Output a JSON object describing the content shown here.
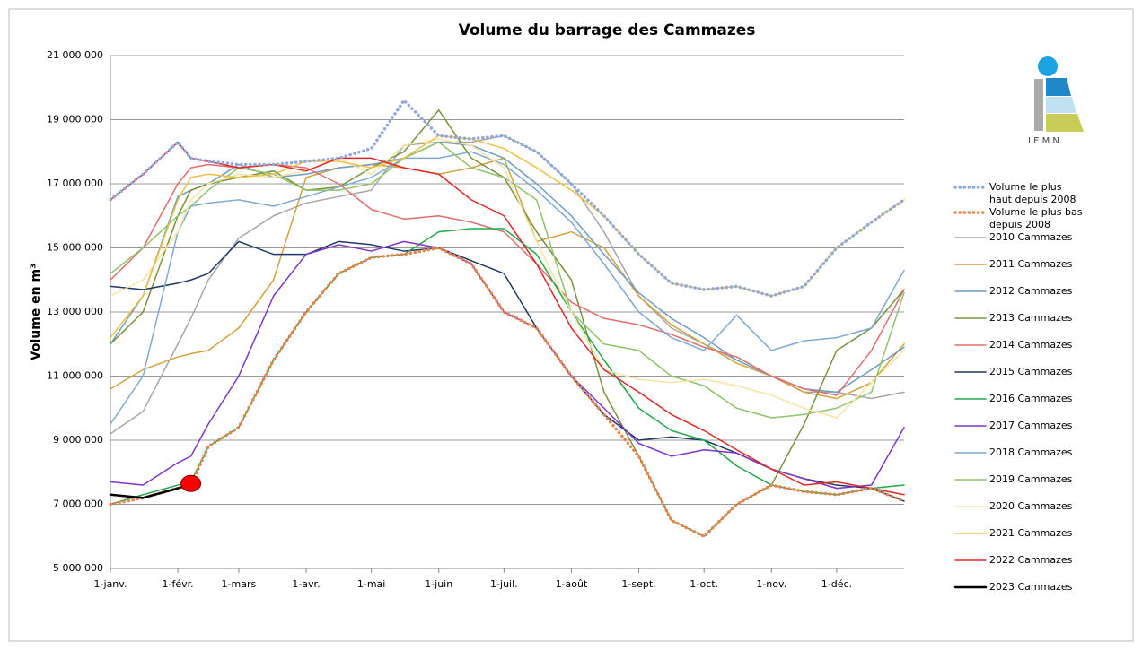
{
  "chart_data": {
    "type": "line",
    "title": "Volume du barrage des Cammazes",
    "y_label": "Volume en m³",
    "logo_text": "I.E.M.N.",
    "grid": true,
    "legend": "right",
    "xlim": [
      0,
      365
    ],
    "xticks": [
      {
        "value": 0,
        "label": "1-janv."
      },
      {
        "value": 31,
        "label": "1-févr."
      },
      {
        "value": 59,
        "label": "1-mars"
      },
      {
        "value": 90,
        "label": "1-avr."
      },
      {
        "value": 120,
        "label": "1-mai"
      },
      {
        "value": 151,
        "label": "1-juin"
      },
      {
        "value": 181,
        "label": "1-juil."
      },
      {
        "value": 212,
        "label": "1-août"
      },
      {
        "value": 243,
        "label": "1-sept."
      },
      {
        "value": 273,
        "label": "1-oct."
      },
      {
        "value": 304,
        "label": "1-nov."
      },
      {
        "value": 334,
        "label": "1-déc."
      }
    ],
    "ylim": [
      5000000,
      21000000
    ],
    "yticks": [
      {
        "value": 5000000,
        "label": "5 000 000"
      },
      {
        "value": 7000000,
        "label": "7 000 000"
      },
      {
        "value": 9000000,
        "label": "9 000 000"
      },
      {
        "value": 11000000,
        "label": "11 000 000"
      },
      {
        "value": 13000000,
        "label": "13 000 000"
      },
      {
        "value": 15000000,
        "label": "15 000 000"
      },
      {
        "value": 17000000,
        "label": "17 000 000"
      },
      {
        "value": 19000000,
        "label": "19 000 000"
      },
      {
        "value": 21000000,
        "label": "21 000 000"
      }
    ],
    "x": [
      0,
      15,
      31,
      37,
      45,
      59,
      75,
      90,
      105,
      120,
      135,
      151,
      166,
      181,
      196,
      212,
      227,
      243,
      258,
      273,
      288,
      304,
      319,
      334,
      350,
      365
    ],
    "series": [
      {
        "name": "Volume le plus haut depuis 2008",
        "color": "#8fa9d8",
        "style": "dotted",
        "values": [
          16500000,
          17300000,
          18300000,
          17800000,
          17700000,
          17600000,
          17600000,
          17700000,
          17800000,
          18100000,
          19600000,
          18500000,
          18400000,
          18500000,
          18000000,
          17000000,
          16000000,
          14800000,
          13900000,
          13700000,
          13800000,
          13500000,
          13800000,
          15000000,
          15800000,
          16500000
        ]
      },
      {
        "name": "Volume le plus bas depuis 2008",
        "color": "#e8834a",
        "style": "dotted",
        "values": [
          7000000,
          7200000,
          7500000,
          7600000,
          8800000,
          9400000,
          11500000,
          13000000,
          14200000,
          14700000,
          14800000,
          15000000,
          14500000,
          13000000,
          12500000,
          11000000,
          9800000,
          8500000,
          6500000,
          6000000,
          7000000,
          7600000,
          7400000,
          7300000,
          7500000,
          7100000
        ]
      },
      {
        "name": "2010 Cammazes",
        "color": "#a6a6a6",
        "values": [
          9200000,
          9900000,
          12000000,
          12800000,
          14000000,
          15300000,
          16000000,
          16400000,
          16600000,
          16800000,
          18200000,
          18300000,
          18300000,
          18500000,
          18000000,
          17000000,
          15500000,
          13500000,
          12500000,
          12000000,
          11500000,
          11000000,
          10500000,
          10500000,
          10300000,
          10500000
        ]
      },
      {
        "name": "2011 Cammazes",
        "color": "#d4a23c",
        "values": [
          10600000,
          11200000,
          11600000,
          11700000,
          11800000,
          12500000,
          14000000,
          17200000,
          17500000,
          17600000,
          17500000,
          17300000,
          17500000,
          17800000,
          15200000,
          15500000,
          15000000,
          13500000,
          12600000,
          12000000,
          11400000,
          11000000,
          10500000,
          10300000,
          10800000,
          12000000
        ]
      },
      {
        "name": "2012 Cammazes",
        "color": "#6f9cc3",
        "values": [
          12000000,
          13500000,
          16600000,
          16800000,
          17000000,
          17600000,
          17200000,
          17300000,
          17500000,
          17600000,
          17800000,
          18300000,
          18200000,
          17800000,
          17000000,
          16000000,
          14800000,
          13600000,
          12800000,
          12200000,
          11500000,
          11000000,
          10600000,
          10500000,
          11200000,
          11900000
        ]
      },
      {
        "name": "2013 Cammazes",
        "color": "#77933c",
        "values": [
          12000000,
          13000000,
          16000000,
          16800000,
          17000000,
          17200000,
          17400000,
          16800000,
          16900000,
          17500000,
          18000000,
          19300000,
          17800000,
          17200000,
          15500000,
          14000000,
          10500000,
          8500000,
          6500000,
          6000000,
          7000000,
          7600000,
          9500000,
          11800000,
          12500000,
          13700000
        ]
      },
      {
        "name": "2014 Cammazes",
        "color": "#e46c6c",
        "values": [
          14000000,
          15000000,
          17000000,
          17500000,
          17600000,
          17500000,
          17600000,
          17500000,
          17000000,
          16200000,
          15900000,
          16000000,
          15800000,
          15500000,
          14500000,
          13300000,
          12800000,
          12600000,
          12300000,
          11900000,
          11600000,
          11000000,
          10600000,
          10400000,
          11800000,
          13700000
        ]
      },
      {
        "name": "2015 Cammazes",
        "color": "#1f3864",
        "values": [
          13800000,
          13700000,
          13900000,
          14000000,
          14200000,
          15200000,
          14800000,
          14800000,
          15200000,
          15100000,
          14900000,
          15000000,
          14600000,
          14200000,
          12500000,
          11000000,
          9800000,
          9000000,
          9100000,
          9000000,
          8600000,
          8100000,
          7800000,
          7600000,
          7500000,
          7100000
        ]
      },
      {
        "name": "2016 Cammazes",
        "color": "#22a84a",
        "values": [
          7000000,
          7300000,
          7600000,
          7700000,
          8800000,
          9400000,
          11500000,
          13000000,
          14200000,
          14700000,
          14800000,
          15500000,
          15600000,
          15600000,
          14800000,
          13000000,
          11500000,
          10000000,
          9300000,
          9000000,
          8200000,
          7600000,
          7400000,
          7300000,
          7500000,
          7600000
        ]
      },
      {
        "name": "2017 Cammazes",
        "color": "#7e35c8",
        "values": [
          7700000,
          7600000,
          8300000,
          8500000,
          9500000,
          11000000,
          13500000,
          14800000,
          15100000,
          14900000,
          15200000,
          15000000,
          14500000,
          13000000,
          12500000,
          11000000,
          10000000,
          8900000,
          8500000,
          8700000,
          8600000,
          8100000,
          7800000,
          7500000,
          7600000,
          9400000
        ]
      },
      {
        "name": "2018 Cammazes",
        "color": "#7fa9d6",
        "values": [
          9500000,
          11000000,
          15500000,
          16300000,
          16400000,
          16500000,
          16300000,
          16600000,
          16900000,
          17200000,
          17800000,
          17800000,
          18000000,
          17600000,
          16800000,
          15800000,
          14500000,
          13000000,
          12200000,
          11800000,
          12900000,
          11800000,
          12100000,
          12200000,
          12500000,
          14300000
        ]
      },
      {
        "name": "2019 Cammazes",
        "color": "#8fc46a",
        "values": [
          14200000,
          15000000,
          16000000,
          16300000,
          16800000,
          17500000,
          17300000,
          16800000,
          16800000,
          17000000,
          17800000,
          18300000,
          17500000,
          17200000,
          16500000,
          13000000,
          12000000,
          11800000,
          11000000,
          10700000,
          10000000,
          9700000,
          9800000,
          10000000,
          10500000,
          13600000
        ]
      },
      {
        "name": "2020 Cammazes",
        "color": "#f7e3a6",
        "values": [
          13500000,
          14000000,
          15500000,
          16500000,
          17000000,
          17300000,
          17200000,
          17400000,
          17800000,
          17300000,
          18200000,
          18400000,
          18200000,
          17500000,
          15200000,
          13000000,
          11200000,
          10900000,
          10800000,
          10900000,
          10700000,
          10400000,
          10000000,
          9700000,
          10800000,
          11800000
        ]
      },
      {
        "name": "2021 Cammazes",
        "color": "#f0c040",
        "values": [
          12200000,
          13500000,
          16500000,
          17200000,
          17300000,
          17200000,
          17300000,
          17700000,
          17700000,
          17500000,
          17800000,
          18500000,
          18400000,
          18100000,
          17500000,
          16800000,
          16000000,
          14800000,
          13900000,
          13700000,
          13800000,
          13500000,
          13800000,
          15000000,
          15800000,
          16500000
        ]
      },
      {
        "name": "2022 Cammazes",
        "color": "#e02828",
        "values": [
          16500000,
          17300000,
          18300000,
          17800000,
          17700000,
          17500000,
          17600000,
          17400000,
          17800000,
          17800000,
          17500000,
          17300000,
          16500000,
          16000000,
          14500000,
          12500000,
          11200000,
          10500000,
          9800000,
          9300000,
          8700000,
          8100000,
          7600000,
          7700000,
          7500000,
          7300000
        ]
      },
      {
        "name": "2023 Cammazes",
        "color": "#000000",
        "width": 2.5,
        "last_marker_color": "#ff0000",
        "values": [
          7300000,
          7200000,
          7500000,
          7650000,
          null,
          null,
          null,
          null,
          null,
          null,
          null,
          null,
          null,
          null,
          null,
          null,
          null,
          null,
          null,
          null,
          null,
          null,
          null,
          null,
          null,
          null
        ]
      }
    ]
  }
}
